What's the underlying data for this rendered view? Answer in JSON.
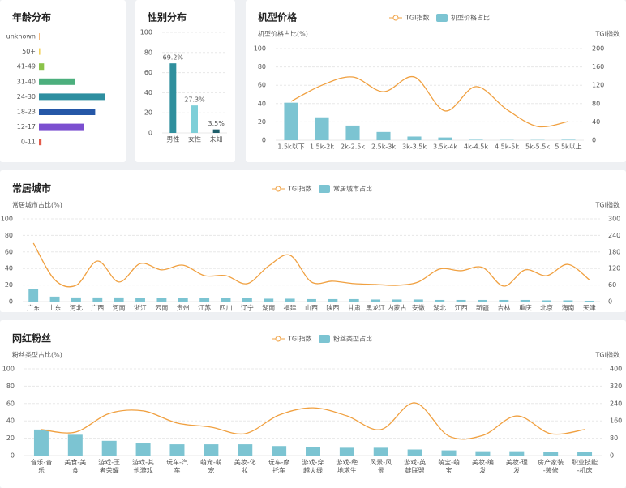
{
  "chart_data": [
    {
      "type": "hbar",
      "title": "年龄分布",
      "categories": [
        "unknown",
        "50+",
        "41-49",
        "31-40",
        "24-30",
        "18-23",
        "12-17",
        "0-11"
      ],
      "values": [
        0.5,
        1,
        4,
        28,
        52,
        44,
        35,
        2
      ],
      "colors": [
        "#f2a65a",
        "#f2d15a",
        "#8bc34a",
        "#4caf7d",
        "#2e8fa0",
        "#2557a7",
        "#7b4fd0",
        "#e45b4a"
      ]
    },
    {
      "type": "bar",
      "title": "性别分布",
      "categories": [
        "男性",
        "女性",
        "未知"
      ],
      "values": [
        69.2,
        27.3,
        3.5
      ],
      "value_labels": [
        "69.2%",
        "27.3%",
        "3.5%"
      ],
      "colors": [
        "#2f8f9d",
        "#7ecfd8",
        "#1f5f6b"
      ],
      "ylim": [
        0,
        100
      ],
      "yticks": [
        0,
        20,
        40,
        60,
        80,
        100
      ],
      "grid": true
    },
    {
      "type": "combo",
      "title": "机型价格",
      "y_label": "机型价格占比(%)",
      "y2_label": "TGI指数",
      "categories": [
        "1.5k以下",
        "1.5k-2k",
        "2k-2.5k",
        "2.5k-3k",
        "3k-3.5k",
        "3.5k-4k",
        "4k-4.5k",
        "4.5k-5k",
        "5k-5.5k",
        "5.5k以上"
      ],
      "series": [
        {
          "name": "TGI指数",
          "type": "line",
          "axis": "y2",
          "color": "#f0a040",
          "values": [
            85,
            120,
            138,
            106,
            138,
            64,
            117,
            67,
            30,
            41
          ]
        },
        {
          "name": "机型价格占比",
          "type": "bar",
          "color": "#7cc4d2",
          "values": [
            41,
            25,
            16,
            9,
            4,
            3,
            0.5,
            0.3,
            0.3,
            0.5
          ]
        }
      ],
      "ylim": [
        0,
        100
      ],
      "yticks": [
        0,
        20,
        40,
        60,
        80,
        100
      ],
      "y2lim": [
        0,
        200
      ],
      "y2ticks": [
        0,
        40,
        80,
        120,
        160,
        200
      ],
      "grid": true
    },
    {
      "type": "combo",
      "title": "常居城市",
      "y_label": "常居城市占比(%)",
      "y2_label": "TGI指数",
      "categories": [
        "广东",
        "山东",
        "河北",
        "广西",
        "河南",
        "浙江",
        "云南",
        "贵州",
        "江苏",
        "四川",
        "辽宁",
        "湖南",
        "福建",
        "山西",
        "陕西",
        "甘肃",
        "黑龙江",
        "内蒙古",
        "安徽",
        "湖北",
        "江西",
        "新疆",
        "吉林",
        "重庆",
        "北京",
        "海南",
        "天津"
      ],
      "series": [
        {
          "name": "TGI指数",
          "type": "line",
          "axis": "y2",
          "color": "#f0a040",
          "values": [
            212,
            79,
            59,
            147,
            71,
            138,
            115,
            132,
            94,
            94,
            65,
            129,
            168,
            71,
            74,
            65,
            62,
            59,
            71,
            118,
            112,
            124,
            56,
            115,
            94,
            135,
            79
          ]
        },
        {
          "name": "常居城市占比",
          "type": "bar",
          "color": "#7cc4d2",
          "values": [
            15,
            6,
            5,
            5,
            5,
            4.5,
            4.5,
            4.5,
            4,
            4,
            4,
            3.5,
            3.5,
            3,
            3,
            3,
            2.5,
            2.5,
            2.5,
            2,
            2,
            2,
            2,
            2,
            1.5,
            1.5,
            1
          ]
        }
      ],
      "ylim": [
        0,
        100
      ],
      "yticks": [
        0,
        20,
        40,
        60,
        80,
        100
      ],
      "y2lim": [
        0,
        300
      ],
      "y2ticks": [
        0,
        60,
        120,
        180,
        240,
        300
      ],
      "grid": true
    },
    {
      "type": "combo",
      "title": "网红粉丝",
      "y_label": "粉丝类型占比(%)",
      "y2_label": "TGI指数",
      "categories": [
        "音乐-音乐",
        "美食-美食",
        "游戏-王者荣耀",
        "游戏-其他游戏",
        "玩车-汽车",
        "萌宠-萌宠",
        "美妆-化妆",
        "玩车-摩托车",
        "游戏-穿越火线",
        "游戏-绝地求生",
        "风景-风景",
        "游戏-英雄联盟",
        "萌宝-萌宝",
        "美妆-编发",
        "美妆-理发",
        "房产家装-装修",
        "职业技能-机床"
      ],
      "series": [
        {
          "name": "TGI指数",
          "type": "line",
          "axis": "y2",
          "color": "#f0a040",
          "values": [
            120,
            108,
            194,
            206,
            150,
            131,
            101,
            187,
            220,
            183,
            120,
            243,
            90,
            93,
            183,
            101,
            120
          ]
        },
        {
          "name": "粉丝类型占比",
          "type": "bar",
          "color": "#7cc4d2",
          "values": [
            30,
            24,
            17,
            14,
            13,
            13,
            13,
            11,
            10,
            9,
            9,
            7,
            6,
            5,
            5,
            4,
            4
          ]
        }
      ],
      "ylim": [
        0,
        100
      ],
      "yticks": [
        0,
        20,
        40,
        60,
        80,
        100
      ],
      "y2lim": [
        0,
        400
      ],
      "y2ticks": [
        0,
        80,
        160,
        240,
        320,
        400
      ],
      "grid": true
    }
  ]
}
